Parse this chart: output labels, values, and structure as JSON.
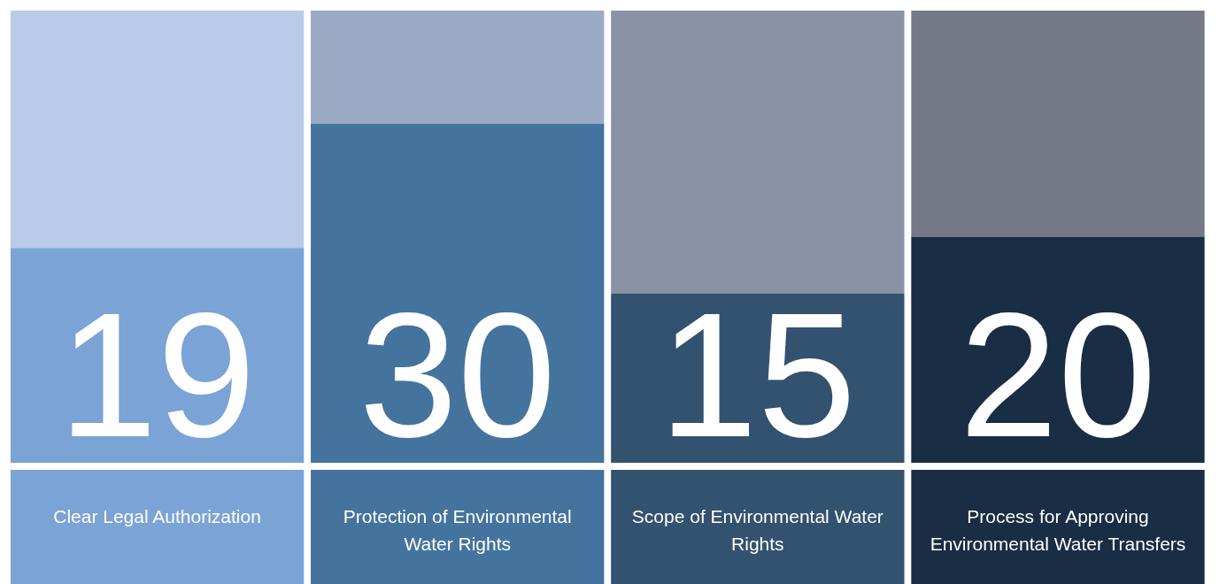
{
  "chart_data": {
    "type": "bar",
    "stacked": true,
    "categories": [
      "Clear Legal Authorization",
      "Protection of Environmental Water Rights",
      "Scope of Environmental Water Rights",
      "Process for Approving Environmental Water Transfers"
    ],
    "series": [
      {
        "colors": [
          "#7ba3d6",
          "#44749e",
          "#33526f",
          "#192d45"
        ],
        "values": [
          19,
          30,
          15,
          20
        ],
        "value_labels": [
          "19",
          "30",
          "15",
          "20"
        ]
      },
      {
        "colors": [
          "#b9cbe8",
          "#9baac4",
          "#8a92a5",
          "#757887"
        ],
        "values": [
          21,
          10,
          25,
          20
        ]
      }
    ],
    "ylim": [
      0,
      40
    ],
    "tick_labels": "x",
    "grid": false,
    "legend": false
  }
}
